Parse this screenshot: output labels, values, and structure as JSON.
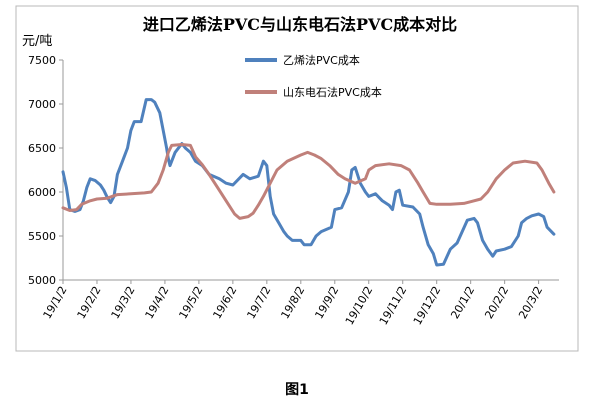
{
  "figure_caption": "图1",
  "chart_data": {
    "type": "line",
    "title": "进口乙烯法PVC与山东电石法PVC成本对比",
    "ylabel": "元/吨",
    "ylim": [
      5000,
      7500
    ],
    "yticks": [
      5000,
      5500,
      6000,
      6500,
      7000,
      7500
    ],
    "xticks": [
      "19/1/2",
      "19/2/2",
      "19/3/2",
      "19/4/2",
      "19/5/2",
      "19/6/2",
      "19/7/2",
      "19/8/2",
      "19/9/2",
      "19/10/2",
      "19/11/2",
      "19/12/2",
      "20/1/2",
      "20/2/2",
      "20/3/2"
    ],
    "grid": false,
    "legend": "top-right",
    "series": [
      {
        "name": "乙烯法PVC成本",
        "color": "#4f81bd",
        "points": [
          [
            0,
            6230
          ],
          [
            0.1,
            6050
          ],
          [
            0.2,
            5800
          ],
          [
            0.35,
            5780
          ],
          [
            0.5,
            5800
          ],
          [
            0.6,
            5900
          ],
          [
            0.7,
            6050
          ],
          [
            0.8,
            6150
          ],
          [
            0.95,
            6130
          ],
          [
            1.1,
            6080
          ],
          [
            1.2,
            6020
          ],
          [
            1.3,
            5940
          ],
          [
            1.4,
            5880
          ],
          [
            1.5,
            5950
          ],
          [
            1.6,
            6200
          ],
          [
            1.75,
            6350
          ],
          [
            1.9,
            6500
          ],
          [
            2.0,
            6700
          ],
          [
            2.1,
            6800
          ],
          [
            2.3,
            6800
          ],
          [
            2.45,
            7050
          ],
          [
            2.6,
            7050
          ],
          [
            2.7,
            7020
          ],
          [
            2.85,
            6900
          ],
          [
            2.95,
            6700
          ],
          [
            3.05,
            6500
          ],
          [
            3.1,
            6380
          ],
          [
            3.15,
            6300
          ],
          [
            3.3,
            6450
          ],
          [
            3.5,
            6550
          ],
          [
            3.6,
            6500
          ],
          [
            3.75,
            6450
          ],
          [
            3.9,
            6350
          ],
          [
            4.1,
            6300
          ],
          [
            4.3,
            6200
          ],
          [
            4.6,
            6150
          ],
          [
            4.8,
            6100
          ],
          [
            5.0,
            6080
          ],
          [
            5.3,
            6200
          ],
          [
            5.5,
            6150
          ],
          [
            5.75,
            6180
          ],
          [
            5.9,
            6350
          ],
          [
            6.0,
            6300
          ],
          [
            6.1,
            5950
          ],
          [
            6.2,
            5750
          ],
          [
            6.35,
            5650
          ],
          [
            6.5,
            5550
          ],
          [
            6.6,
            5500
          ],
          [
            6.75,
            5450
          ],
          [
            7.0,
            5450
          ],
          [
            7.1,
            5400
          ],
          [
            7.3,
            5400
          ],
          [
            7.45,
            5500
          ],
          [
            7.6,
            5550
          ],
          [
            7.9,
            5600
          ],
          [
            8.0,
            5800
          ],
          [
            8.2,
            5820
          ],
          [
            8.4,
            6000
          ],
          [
            8.5,
            6250
          ],
          [
            8.6,
            6280
          ],
          [
            8.75,
            6100
          ],
          [
            8.9,
            6000
          ],
          [
            9.0,
            5950
          ],
          [
            9.2,
            5980
          ],
          [
            9.4,
            5900
          ],
          [
            9.6,
            5850
          ],
          [
            9.7,
            5800
          ],
          [
            9.8,
            6000
          ],
          [
            9.9,
            6020
          ],
          [
            10.0,
            5850
          ],
          [
            10.3,
            5830
          ],
          [
            10.5,
            5750
          ],
          [
            10.6,
            5600
          ],
          [
            10.75,
            5400
          ],
          [
            10.9,
            5300
          ],
          [
            11.0,
            5170
          ],
          [
            11.2,
            5180
          ],
          [
            11.4,
            5350
          ],
          [
            11.6,
            5420
          ],
          [
            11.75,
            5550
          ],
          [
            11.9,
            5680
          ],
          [
            12.1,
            5700
          ],
          [
            12.2,
            5650
          ],
          [
            12.35,
            5450
          ],
          [
            12.5,
            5350
          ],
          [
            12.65,
            5270
          ],
          [
            12.75,
            5330
          ],
          [
            13.0,
            5350
          ],
          [
            13.2,
            5380
          ],
          [
            13.4,
            5500
          ],
          [
            13.5,
            5650
          ],
          [
            13.65,
            5700
          ],
          [
            13.8,
            5730
          ],
          [
            14.0,
            5750
          ],
          [
            14.15,
            5720
          ],
          [
            14.25,
            5600
          ],
          [
            14.45,
            5520
          ]
        ]
      },
      {
        "name": "山东电石法PVC成本",
        "color": "#c0807a",
        "points": [
          [
            0,
            5820
          ],
          [
            0.2,
            5790
          ],
          [
            0.4,
            5800
          ],
          [
            0.55,
            5860
          ],
          [
            0.8,
            5900
          ],
          [
            1.0,
            5920
          ],
          [
            1.3,
            5930
          ],
          [
            1.6,
            5970
          ],
          [
            2.0,
            5980
          ],
          [
            2.4,
            5990
          ],
          [
            2.6,
            6000
          ],
          [
            2.8,
            6100
          ],
          [
            2.95,
            6250
          ],
          [
            3.1,
            6450
          ],
          [
            3.2,
            6530
          ],
          [
            3.5,
            6540
          ],
          [
            3.75,
            6530
          ],
          [
            3.9,
            6400
          ],
          [
            4.1,
            6310
          ],
          [
            4.3,
            6200
          ],
          [
            4.55,
            6050
          ],
          [
            4.8,
            5900
          ],
          [
            5.05,
            5750
          ],
          [
            5.2,
            5700
          ],
          [
            5.45,
            5720
          ],
          [
            5.6,
            5760
          ],
          [
            5.75,
            5850
          ],
          [
            5.9,
            5950
          ],
          [
            6.1,
            6100
          ],
          [
            6.3,
            6250
          ],
          [
            6.6,
            6350
          ],
          [
            7.0,
            6420
          ],
          [
            7.2,
            6450
          ],
          [
            7.4,
            6420
          ],
          [
            7.6,
            6380
          ],
          [
            7.85,
            6300
          ],
          [
            8.1,
            6200
          ],
          [
            8.3,
            6150
          ],
          [
            8.6,
            6100
          ],
          [
            8.9,
            6150
          ],
          [
            9.0,
            6250
          ],
          [
            9.2,
            6300
          ],
          [
            9.6,
            6320
          ],
          [
            9.95,
            6300
          ],
          [
            10.2,
            6250
          ],
          [
            10.45,
            6100
          ],
          [
            10.6,
            6000
          ],
          [
            10.8,
            5870
          ],
          [
            11.0,
            5860
          ],
          [
            11.4,
            5860
          ],
          [
            11.8,
            5870
          ],
          [
            12.0,
            5890
          ],
          [
            12.3,
            5920
          ],
          [
            12.5,
            6000
          ],
          [
            12.75,
            6150
          ],
          [
            13.0,
            6250
          ],
          [
            13.25,
            6330
          ],
          [
            13.6,
            6350
          ],
          [
            13.95,
            6330
          ],
          [
            14.1,
            6250
          ],
          [
            14.3,
            6100
          ],
          [
            14.45,
            6000
          ]
        ]
      }
    ]
  }
}
